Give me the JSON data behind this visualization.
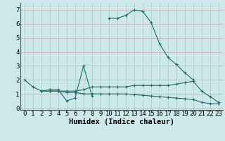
{
  "xlabel": "Humidex (Indice chaleur)",
  "ylabel": "",
  "xlim": [
    -0.5,
    23.5
  ],
  "ylim": [
    -0.15,
    7.5
  ],
  "background_color": "#cce8e8",
  "grid_color": "#bbcccc",
  "line_color": "#1a6b6b",
  "x": [
    0,
    1,
    2,
    3,
    4,
    5,
    6,
    7,
    8,
    9,
    10,
    11,
    12,
    13,
    14,
    15,
    16,
    17,
    18,
    19,
    20,
    21,
    22,
    23
  ],
  "line1": [
    2.0,
    1.5,
    1.2,
    1.3,
    1.3,
    0.5,
    0.7,
    3.0,
    0.85,
    null,
    null,
    null,
    null,
    null,
    null,
    null,
    null,
    null,
    null,
    null,
    null,
    null,
    null,
    null
  ],
  "line2": [
    null,
    null,
    null,
    null,
    null,
    null,
    null,
    null,
    null,
    null,
    6.4,
    6.4,
    6.6,
    7.0,
    6.9,
    6.1,
    4.6,
    3.6,
    3.1,
    2.5,
    2.0,
    null,
    null,
    null
  ],
  "line3": [
    null,
    null,
    1.2,
    1.2,
    1.2,
    1.2,
    1.2,
    1.3,
    1.5,
    1.5,
    1.5,
    1.5,
    1.5,
    1.6,
    1.6,
    1.6,
    1.6,
    1.6,
    1.7,
    1.8,
    1.9,
    1.2,
    0.8,
    0.4
  ],
  "line4": [
    null,
    null,
    1.2,
    1.2,
    1.2,
    1.1,
    1.1,
    1.0,
    1.0,
    1.0,
    1.0,
    1.0,
    1.0,
    0.95,
    0.9,
    0.85,
    0.8,
    0.75,
    0.7,
    0.65,
    0.6,
    0.4,
    0.3,
    0.3
  ],
  "xtick_labels": [
    "0",
    "1",
    "2",
    "3",
    "4",
    "5",
    "6",
    "7",
    "8",
    "9",
    "10",
    "11",
    "12",
    "13",
    "14",
    "15",
    "16",
    "17",
    "18",
    "19",
    "20",
    "21",
    "22",
    "23"
  ],
  "ytick_labels": [
    "0",
    "1",
    "2",
    "3",
    "4",
    "5",
    "6",
    "7"
  ],
  "font": "monospace",
  "font_size": 6.5,
  "xlabel_fontsize": 7.5
}
